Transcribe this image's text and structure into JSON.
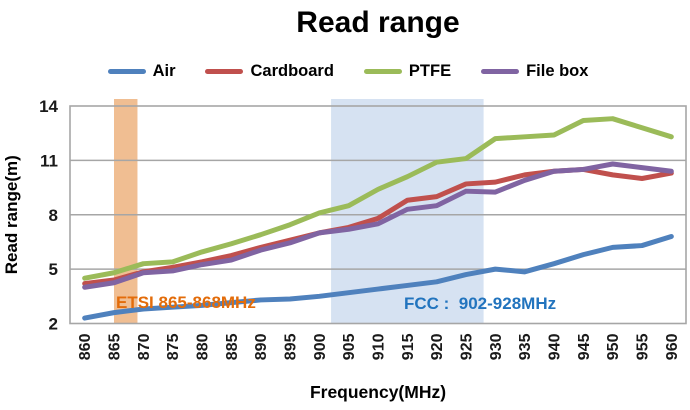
{
  "title": "Read range",
  "legend": [
    {
      "label": "Air",
      "color": "#4F81BD"
    },
    {
      "label": "Cardboard",
      "color": "#C0504D"
    },
    {
      "label": "PTFE",
      "color": "#9BBB59"
    },
    {
      "label": "File box",
      "color": "#8064A2"
    }
  ],
  "colors": {
    "gridline": "#A6A6A6",
    "plot_border": "#A6A6A6",
    "tick_text": "#1a1a1a"
  },
  "chart_data": {
    "type": "line",
    "title": "Read range",
    "xlabel": "Frequency(MHz)",
    "ylabel": "Read range(m)",
    "x": [
      860,
      865,
      870,
      875,
      880,
      885,
      890,
      895,
      900,
      905,
      910,
      915,
      920,
      925,
      930,
      935,
      940,
      945,
      950,
      955,
      960
    ],
    "ylim": [
      2,
      14
    ],
    "yticks": [
      2,
      5,
      8,
      11,
      14
    ],
    "grid": true,
    "legend_position": "top",
    "series": [
      {
        "name": "Air",
        "color": "#4F81BD",
        "values": [
          2.3,
          2.6,
          2.8,
          2.9,
          3.0,
          3.15,
          3.3,
          3.35,
          3.5,
          3.7,
          3.9,
          4.1,
          4.3,
          4.7,
          5.0,
          4.85,
          5.3,
          5.8,
          6.2,
          6.3,
          6.8
        ]
      },
      {
        "name": "Cardboard",
        "color": "#C0504D",
        "values": [
          4.2,
          4.4,
          4.85,
          5.1,
          5.4,
          5.75,
          6.2,
          6.6,
          7.0,
          7.3,
          7.8,
          8.8,
          9.0,
          9.7,
          9.8,
          10.2,
          10.4,
          10.5,
          10.2,
          10.0,
          10.3
        ]
      },
      {
        "name": "PTFE",
        "color": "#9BBB59",
        "values": [
          4.5,
          4.8,
          5.3,
          5.4,
          5.95,
          6.4,
          6.9,
          7.45,
          8.1,
          8.5,
          9.4,
          10.1,
          10.9,
          11.1,
          12.2,
          12.3,
          12.4,
          13.2,
          13.3,
          12.8,
          12.3
        ]
      },
      {
        "name": "File box",
        "color": "#8064A2",
        "values": [
          4.0,
          4.25,
          4.8,
          4.9,
          5.25,
          5.5,
          6.05,
          6.45,
          7.0,
          7.2,
          7.5,
          8.3,
          8.5,
          9.3,
          9.25,
          9.9,
          10.4,
          10.5,
          10.8,
          10.6,
          10.4
        ]
      }
    ],
    "bands": [
      {
        "label": "ETSI 865-868MHz",
        "x_start": 865,
        "x_end": 869,
        "fill": "#F0BE92",
        "label_color": "#E36C0A"
      },
      {
        "label": "FCC :  902-928MHz",
        "x_start": 902,
        "x_end": 928,
        "fill": "#D6E2F2",
        "label_color": "#2274BE"
      }
    ]
  }
}
